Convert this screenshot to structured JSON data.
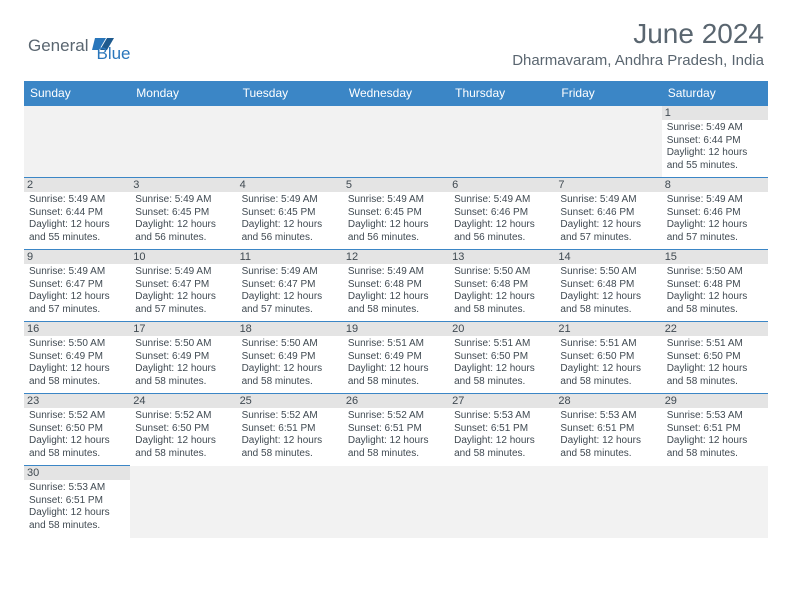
{
  "brand": {
    "part1": "General",
    "part2": "Blue"
  },
  "title": "June 2024",
  "location": "Dharmavaram, Andhra Pradesh, India",
  "colors": {
    "header_bg": "#3b86c6",
    "header_text": "#ffffff",
    "daynum_bg": "#e4e4e4",
    "empty_bg": "#f2f2f2",
    "cell_border": "#3b86c6",
    "text": "#404a52",
    "title_text": "#5a6670",
    "logo_gray": "#5a6670",
    "logo_blue": "#2976bb"
  },
  "day_headers": [
    "Sunday",
    "Monday",
    "Tuesday",
    "Wednesday",
    "Thursday",
    "Friday",
    "Saturday"
  ],
  "weeks": [
    [
      {
        "blank": true
      },
      {
        "blank": true
      },
      {
        "blank": true
      },
      {
        "blank": true
      },
      {
        "blank": true
      },
      {
        "blank": true
      },
      {
        "day": "1",
        "sunrise": "Sunrise: 5:49 AM",
        "sunset": "Sunset: 6:44 PM",
        "daylight1": "Daylight: 12 hours",
        "daylight2": "and 55 minutes."
      }
    ],
    [
      {
        "day": "2",
        "sunrise": "Sunrise: 5:49 AM",
        "sunset": "Sunset: 6:44 PM",
        "daylight1": "Daylight: 12 hours",
        "daylight2": "and 55 minutes."
      },
      {
        "day": "3",
        "sunrise": "Sunrise: 5:49 AM",
        "sunset": "Sunset: 6:45 PM",
        "daylight1": "Daylight: 12 hours",
        "daylight2": "and 56 minutes."
      },
      {
        "day": "4",
        "sunrise": "Sunrise: 5:49 AM",
        "sunset": "Sunset: 6:45 PM",
        "daylight1": "Daylight: 12 hours",
        "daylight2": "and 56 minutes."
      },
      {
        "day": "5",
        "sunrise": "Sunrise: 5:49 AM",
        "sunset": "Sunset: 6:45 PM",
        "daylight1": "Daylight: 12 hours",
        "daylight2": "and 56 minutes."
      },
      {
        "day": "6",
        "sunrise": "Sunrise: 5:49 AM",
        "sunset": "Sunset: 6:46 PM",
        "daylight1": "Daylight: 12 hours",
        "daylight2": "and 56 minutes."
      },
      {
        "day": "7",
        "sunrise": "Sunrise: 5:49 AM",
        "sunset": "Sunset: 6:46 PM",
        "daylight1": "Daylight: 12 hours",
        "daylight2": "and 57 minutes."
      },
      {
        "day": "8",
        "sunrise": "Sunrise: 5:49 AM",
        "sunset": "Sunset: 6:46 PM",
        "daylight1": "Daylight: 12 hours",
        "daylight2": "and 57 minutes."
      }
    ],
    [
      {
        "day": "9",
        "sunrise": "Sunrise: 5:49 AM",
        "sunset": "Sunset: 6:47 PM",
        "daylight1": "Daylight: 12 hours",
        "daylight2": "and 57 minutes."
      },
      {
        "day": "10",
        "sunrise": "Sunrise: 5:49 AM",
        "sunset": "Sunset: 6:47 PM",
        "daylight1": "Daylight: 12 hours",
        "daylight2": "and 57 minutes."
      },
      {
        "day": "11",
        "sunrise": "Sunrise: 5:49 AM",
        "sunset": "Sunset: 6:47 PM",
        "daylight1": "Daylight: 12 hours",
        "daylight2": "and 57 minutes."
      },
      {
        "day": "12",
        "sunrise": "Sunrise: 5:49 AM",
        "sunset": "Sunset: 6:48 PM",
        "daylight1": "Daylight: 12 hours",
        "daylight2": "and 58 minutes."
      },
      {
        "day": "13",
        "sunrise": "Sunrise: 5:50 AM",
        "sunset": "Sunset: 6:48 PM",
        "daylight1": "Daylight: 12 hours",
        "daylight2": "and 58 minutes."
      },
      {
        "day": "14",
        "sunrise": "Sunrise: 5:50 AM",
        "sunset": "Sunset: 6:48 PM",
        "daylight1": "Daylight: 12 hours",
        "daylight2": "and 58 minutes."
      },
      {
        "day": "15",
        "sunrise": "Sunrise: 5:50 AM",
        "sunset": "Sunset: 6:48 PM",
        "daylight1": "Daylight: 12 hours",
        "daylight2": "and 58 minutes."
      }
    ],
    [
      {
        "day": "16",
        "sunrise": "Sunrise: 5:50 AM",
        "sunset": "Sunset: 6:49 PM",
        "daylight1": "Daylight: 12 hours",
        "daylight2": "and 58 minutes."
      },
      {
        "day": "17",
        "sunrise": "Sunrise: 5:50 AM",
        "sunset": "Sunset: 6:49 PM",
        "daylight1": "Daylight: 12 hours",
        "daylight2": "and 58 minutes."
      },
      {
        "day": "18",
        "sunrise": "Sunrise: 5:50 AM",
        "sunset": "Sunset: 6:49 PM",
        "daylight1": "Daylight: 12 hours",
        "daylight2": "and 58 minutes."
      },
      {
        "day": "19",
        "sunrise": "Sunrise: 5:51 AM",
        "sunset": "Sunset: 6:49 PM",
        "daylight1": "Daylight: 12 hours",
        "daylight2": "and 58 minutes."
      },
      {
        "day": "20",
        "sunrise": "Sunrise: 5:51 AM",
        "sunset": "Sunset: 6:50 PM",
        "daylight1": "Daylight: 12 hours",
        "daylight2": "and 58 minutes."
      },
      {
        "day": "21",
        "sunrise": "Sunrise: 5:51 AM",
        "sunset": "Sunset: 6:50 PM",
        "daylight1": "Daylight: 12 hours",
        "daylight2": "and 58 minutes."
      },
      {
        "day": "22",
        "sunrise": "Sunrise: 5:51 AM",
        "sunset": "Sunset: 6:50 PM",
        "daylight1": "Daylight: 12 hours",
        "daylight2": "and 58 minutes."
      }
    ],
    [
      {
        "day": "23",
        "sunrise": "Sunrise: 5:52 AM",
        "sunset": "Sunset: 6:50 PM",
        "daylight1": "Daylight: 12 hours",
        "daylight2": "and 58 minutes."
      },
      {
        "day": "24",
        "sunrise": "Sunrise: 5:52 AM",
        "sunset": "Sunset: 6:50 PM",
        "daylight1": "Daylight: 12 hours",
        "daylight2": "and 58 minutes."
      },
      {
        "day": "25",
        "sunrise": "Sunrise: 5:52 AM",
        "sunset": "Sunset: 6:51 PM",
        "daylight1": "Daylight: 12 hours",
        "daylight2": "and 58 minutes."
      },
      {
        "day": "26",
        "sunrise": "Sunrise: 5:52 AM",
        "sunset": "Sunset: 6:51 PM",
        "daylight1": "Daylight: 12 hours",
        "daylight2": "and 58 minutes."
      },
      {
        "day": "27",
        "sunrise": "Sunrise: 5:53 AM",
        "sunset": "Sunset: 6:51 PM",
        "daylight1": "Daylight: 12 hours",
        "daylight2": "and 58 minutes."
      },
      {
        "day": "28",
        "sunrise": "Sunrise: 5:53 AM",
        "sunset": "Sunset: 6:51 PM",
        "daylight1": "Daylight: 12 hours",
        "daylight2": "and 58 minutes."
      },
      {
        "day": "29",
        "sunrise": "Sunrise: 5:53 AM",
        "sunset": "Sunset: 6:51 PM",
        "daylight1": "Daylight: 12 hours",
        "daylight2": "and 58 minutes."
      }
    ],
    [
      {
        "day": "30",
        "sunrise": "Sunrise: 5:53 AM",
        "sunset": "Sunset: 6:51 PM",
        "daylight1": "Daylight: 12 hours",
        "daylight2": "and 58 minutes."
      },
      {
        "blank": true
      },
      {
        "blank": true
      },
      {
        "blank": true
      },
      {
        "blank": true
      },
      {
        "blank": true
      },
      {
        "blank": true
      }
    ]
  ]
}
